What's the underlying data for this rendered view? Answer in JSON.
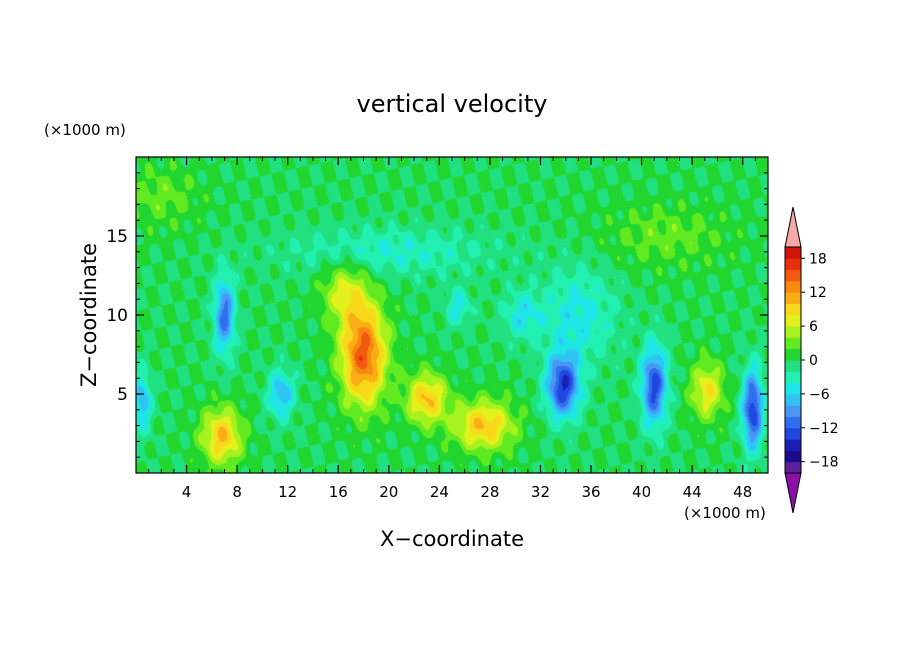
{
  "chart_data": {
    "type": "heatmap",
    "title": "vertical velocity",
    "xlabel": "X−coordinate",
    "ylabel": "Z−coordinate",
    "x_unit_label": "(×1000 m)",
    "y_unit_label": "(×1000 m)",
    "xlim": [
      0,
      50
    ],
    "ylim": [
      0,
      20
    ],
    "x_ticks": [
      4,
      8,
      12,
      16,
      20,
      24,
      28,
      32,
      36,
      40,
      44,
      48
    ],
    "y_ticks": [
      5,
      10,
      15
    ],
    "colorbar": {
      "levels": [
        -20,
        -18,
        -16,
        -14,
        -12,
        -10,
        -8,
        -6,
        -4,
        -2,
        0,
        2,
        4,
        6,
        8,
        10,
        12,
        14,
        16,
        18,
        20
      ],
      "colors": [
        "#5a1f9a",
        "#1c0a8c",
        "#1a1fb8",
        "#2048e0",
        "#2f70f0",
        "#4a96f5",
        "#30c4f4",
        "#1ee6e6",
        "#22f0b0",
        "#20e080",
        "#22d630",
        "#62ea20",
        "#a6f21e",
        "#e4f01a",
        "#f8d81a",
        "#fbae14",
        "#f88a10",
        "#f2580e",
        "#e8300e",
        "#d4140a"
      ],
      "under_color": "#8c10a8",
      "over_color": "#f4a8a8",
      "tick_labels": [
        "18",
        "12",
        "6",
        "0",
        "−6",
        "−12",
        "−18"
      ],
      "tick_values": [
        18,
        12,
        6,
        0,
        -6,
        -12,
        -18
      ],
      "extend": "both"
    },
    "background_level": 0,
    "features": [
      {
        "kind": "updraft",
        "x": 6.8,
        "z": 2.3,
        "peak": 10,
        "sx": 1.6,
        "sz": 1.8
      },
      {
        "kind": "updraft",
        "x": 18.0,
        "z": 7.5,
        "peak": 15,
        "sx": 1.8,
        "sz": 3.2
      },
      {
        "kind": "updraft",
        "x": 16.5,
        "z": 11.5,
        "peak": 6,
        "sx": 1.8,
        "sz": 2.0
      },
      {
        "kind": "updraft",
        "x": 23.0,
        "z": 4.7,
        "peak": 10,
        "sx": 1.6,
        "sz": 1.6
      },
      {
        "kind": "updraft",
        "x": 27.5,
        "z": 3.0,
        "peak": 10,
        "sx": 2.4,
        "sz": 1.6
      },
      {
        "kind": "updraft",
        "x": 45.2,
        "z": 5.2,
        "peak": 8,
        "sx": 1.3,
        "sz": 1.8
      },
      {
        "kind": "updraft",
        "x": 2.0,
        "z": 17.5,
        "peak": 3,
        "sx": 3.0,
        "sz": 2.0
      },
      {
        "kind": "updraft",
        "x": 42.0,
        "z": 15.0,
        "peak": 3,
        "sx": 5.0,
        "sz": 2.0
      },
      {
        "kind": "downdraft",
        "x": 7.0,
        "z": 10.0,
        "peak": -11,
        "sx": 0.8,
        "sz": 2.4
      },
      {
        "kind": "downdraft",
        "x": 11.5,
        "z": 5.0,
        "peak": -8,
        "sx": 1.0,
        "sz": 1.5
      },
      {
        "kind": "downdraft",
        "x": 33.8,
        "z": 5.5,
        "peak": -14,
        "sx": 1.3,
        "sz": 2.0
      },
      {
        "kind": "downdraft",
        "x": 41.0,
        "z": 5.5,
        "peak": -13,
        "sx": 1.0,
        "sz": 2.5
      },
      {
        "kind": "downdraft",
        "x": 48.8,
        "z": 4.0,
        "peak": -14,
        "sx": 0.8,
        "sz": 2.5
      },
      {
        "kind": "downdraft",
        "x": 0.5,
        "z": 4.5,
        "peak": -8,
        "sx": 0.7,
        "sz": 1.8
      },
      {
        "kind": "downdraft",
        "x": 30.5,
        "z": 10.0,
        "peak": -5,
        "sx": 1.5,
        "sz": 1.5
      },
      {
        "kind": "downdraft",
        "x": 25.5,
        "z": 10.5,
        "peak": -5,
        "sx": 1.0,
        "sz": 1.2
      },
      {
        "kind": "downdraft",
        "x": 35.0,
        "z": 10.0,
        "peak": -5,
        "sx": 3.0,
        "sz": 3.0
      },
      {
        "kind": "downdraft",
        "x": 20.0,
        "z": 14.0,
        "peak": -4,
        "sx": 8.0,
        "sz": 1.5
      }
    ]
  }
}
